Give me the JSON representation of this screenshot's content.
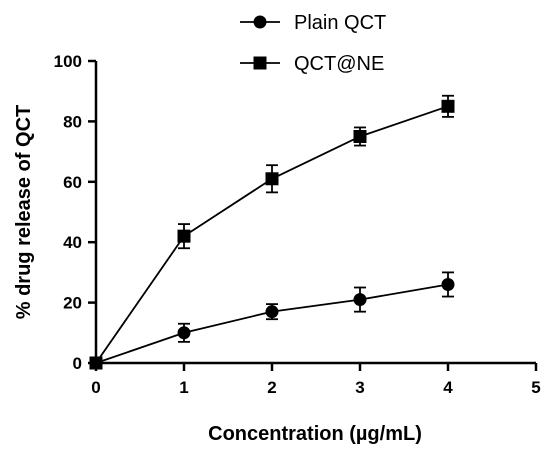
{
  "chart_data": {
    "type": "line",
    "xlabel": "Concentration (µg/mL)",
    "ylabel": "% drug release of QCT",
    "xlim": [
      0,
      5
    ],
    "ylim": [
      0,
      100
    ],
    "x_ticks": [
      "0",
      "1",
      "2",
      "3",
      "4",
      "5"
    ],
    "y_ticks": [
      "0",
      "20",
      "40",
      "60",
      "80",
      "100"
    ],
    "grid": false,
    "legend_position": "top",
    "x": [
      0,
      1,
      2,
      3,
      4
    ],
    "series": [
      {
        "name": "Plain QCT",
        "marker": "circle",
        "color": "#000000",
        "values": [
          0,
          10,
          17,
          21,
          26
        ],
        "errors": [
          0,
          3,
          2.5,
          4,
          4
        ]
      },
      {
        "name": "QCT@NE",
        "marker": "square",
        "color": "#000000",
        "values": [
          0,
          42,
          61,
          75,
          85
        ],
        "errors": [
          0,
          4,
          4.5,
          3,
          3.5
        ]
      }
    ]
  }
}
